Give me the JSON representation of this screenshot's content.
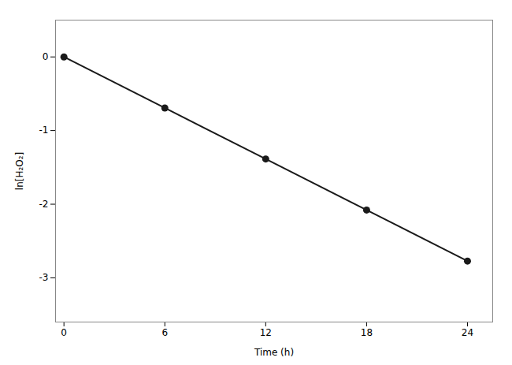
{
  "chart_data": {
    "type": "line",
    "x": [
      0,
      6,
      12,
      18,
      24
    ],
    "values": [
      0,
      -0.693,
      -1.386,
      -2.079,
      -2.772
    ],
    "xlabel": "Time (h)",
    "ylabel": "ln[H₂O₂]",
    "xlim": [
      -0.5,
      25.5
    ],
    "ylim": [
      -3.6,
      0.5
    ],
    "xticks": [
      0,
      6,
      12,
      18,
      24
    ],
    "yticks": [
      0,
      -1,
      -2,
      -3
    ],
    "color": "#1a1a1a",
    "marker": "circle",
    "grid": false
  }
}
